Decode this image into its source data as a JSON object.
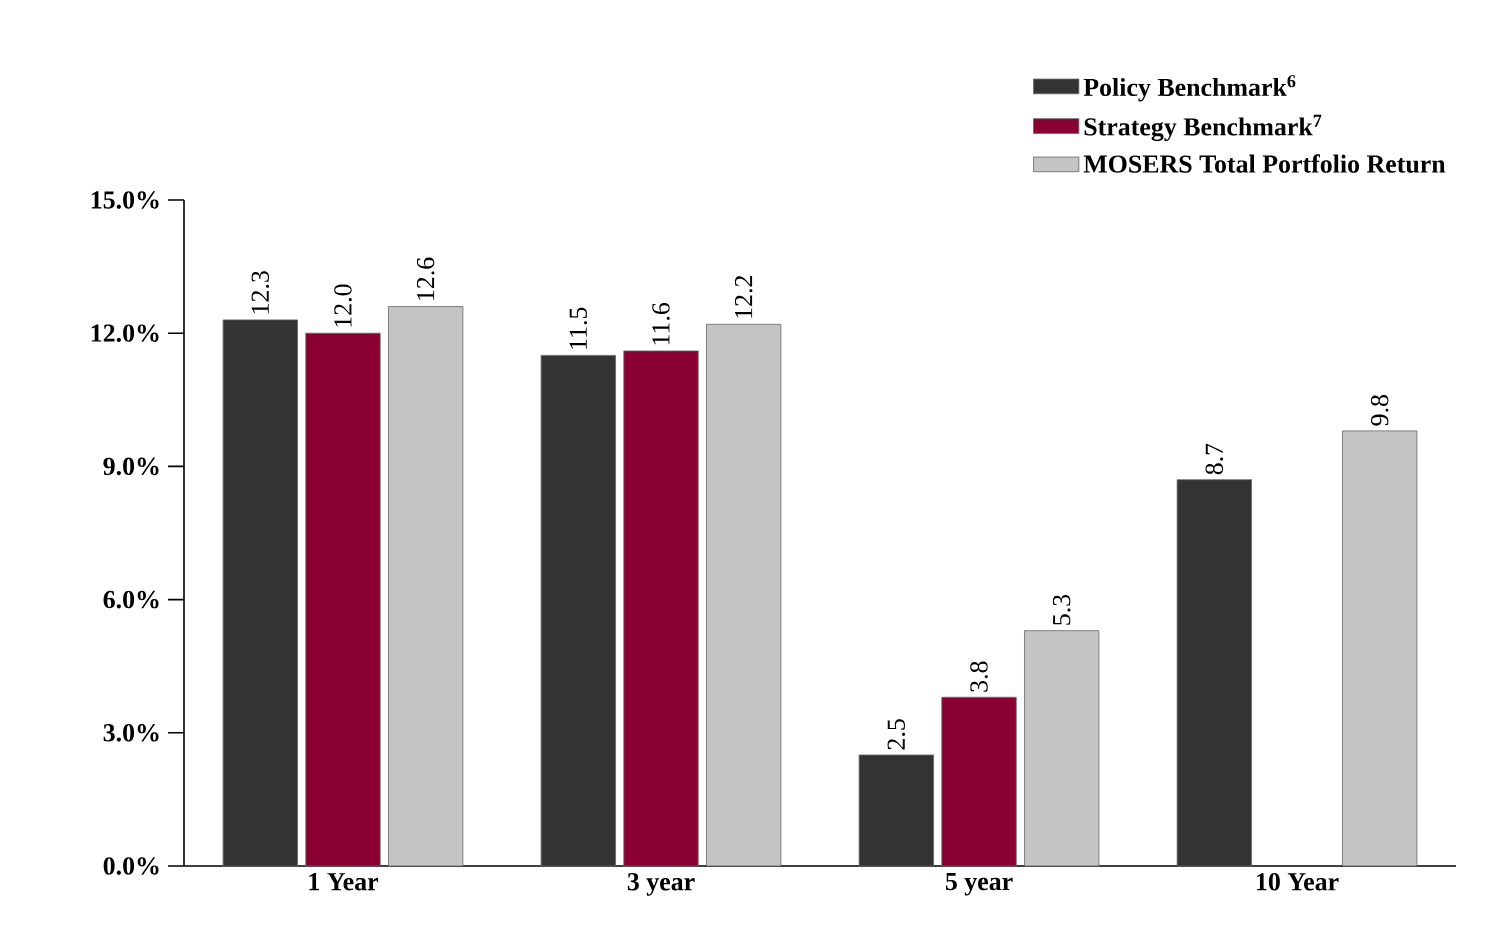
{
  "chart_data": {
    "type": "bar",
    "categories": [
      "1 Year",
      "3 year",
      "5 year",
      "10 Year"
    ],
    "series": [
      {
        "name": "Policy Benchmark$^{6}$",
        "color": "#333333",
        "values": [
          12.3,
          11.5,
          2.5,
          8.7
        ],
        "value_labels": [
          "12.3",
          "11.5",
          "2.5",
          "8.7"
        ]
      },
      {
        "name": "Strategy Benchmark$^{7}$",
        "color": "#8b0033",
        "values": [
          12.0,
          11.6,
          3.8,
          null
        ],
        "value_labels": [
          "12.0",
          "11.6",
          "3.8",
          null
        ]
      },
      {
        "name": "MOSERS Total Portfolio Return",
        "color": "#c4c4c4",
        "values": [
          12.6,
          12.2,
          5.3,
          9.8
        ],
        "value_labels": [
          "12.6",
          "12.2",
          "5.3",
          "9.8"
        ]
      }
    ],
    "ylim": [
      0,
      15
    ],
    "yticks": [
      {
        "value": 0,
        "label": "0.0%"
      },
      {
        "value": 3,
        "label": "3.0%"
      },
      {
        "value": 6,
        "label": "6.0%"
      },
      {
        "value": 9,
        "label": "9.0%"
      },
      {
        "value": 12,
        "label": "12.0%"
      },
      {
        "value": 15,
        "label": "15.0%"
      }
    ],
    "grid": false,
    "legend": "top right"
  }
}
